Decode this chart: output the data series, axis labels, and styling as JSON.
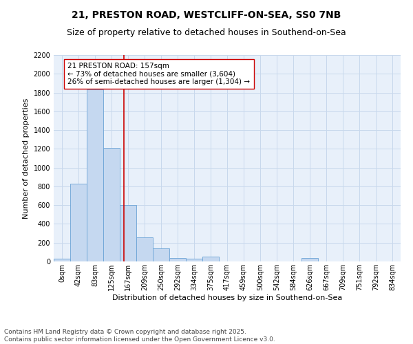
{
  "title1": "21, PRESTON ROAD, WESTCLIFF-ON-SEA, SS0 7NB",
  "title2": "Size of property relative to detached houses in Southend-on-Sea",
  "xlabel": "Distribution of detached houses by size in Southend-on-Sea",
  "ylabel": "Number of detached properties",
  "bin_labels": [
    "0sqm",
    "42sqm",
    "83sqm",
    "125sqm",
    "167sqm",
    "209sqm",
    "250sqm",
    "292sqm",
    "334sqm",
    "375sqm",
    "417sqm",
    "459sqm",
    "500sqm",
    "542sqm",
    "584sqm",
    "626sqm",
    "667sqm",
    "709sqm",
    "751sqm",
    "792sqm",
    "834sqm"
  ],
  "bar_values": [
    30,
    830,
    1830,
    1210,
    600,
    255,
    140,
    40,
    30,
    55,
    0,
    0,
    0,
    0,
    0,
    35,
    0,
    0,
    0,
    0,
    0
  ],
  "bar_color": "#C5D8F0",
  "bar_edge_color": "#6BA3D6",
  "vline_x": 3.75,
  "vline_color": "#CC0000",
  "annotation_text": "21 PRESTON ROAD: 157sqm\n← 73% of detached houses are smaller (3,604)\n26% of semi-detached houses are larger (1,304) →",
  "annotation_box_color": "#FFFFFF",
  "annotation_box_edge": "#CC0000",
  "ylim": [
    0,
    2200
  ],
  "yticks": [
    0,
    200,
    400,
    600,
    800,
    1000,
    1200,
    1400,
    1600,
    1800,
    2000,
    2200
  ],
  "grid_color": "#C8D8EC",
  "background_color": "#E8F0FA",
  "footer": "Contains HM Land Registry data © Crown copyright and database right 2025.\nContains public sector information licensed under the Open Government Licence v3.0.",
  "title1_fontsize": 10,
  "title2_fontsize": 9,
  "xlabel_fontsize": 8,
  "ylabel_fontsize": 8,
  "tick_fontsize": 7,
  "annotation_fontsize": 7.5,
  "footer_fontsize": 6.5
}
